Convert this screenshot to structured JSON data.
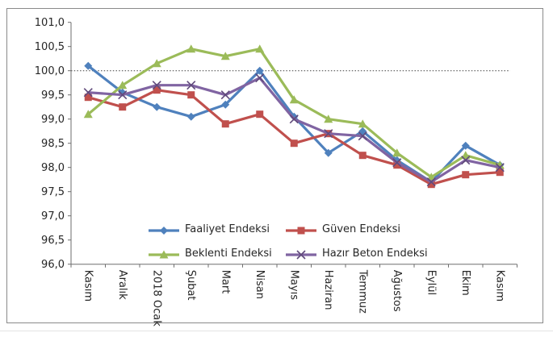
{
  "window": {
    "background": "#ffffff",
    "frame_border_color": "#8a8a8a"
  },
  "chart_data": {
    "type": "line",
    "title": "",
    "xlabel": "",
    "ylabel": "",
    "categories": [
      "Kasım",
      "Aralık",
      "2018 Ocak",
      "Şubat",
      "Mart",
      "Nisan",
      "Mayıs",
      "Haziran",
      "Temmuz",
      "Ağustos",
      "Eylül",
      "Ekim",
      "Kasım"
    ],
    "series": [
      {
        "name": "Faaliyet Endeksi",
        "color": "#4F81BD",
        "marker": "diamond",
        "values": [
          100.1,
          99.55,
          99.25,
          99.05,
          99.3,
          100.0,
          99.05,
          98.3,
          98.75,
          98.15,
          97.7,
          98.45,
          98.05
        ]
      },
      {
        "name": "Güven Endeksi",
        "color": "#C0504D",
        "marker": "square",
        "values": [
          99.45,
          99.25,
          99.6,
          99.5,
          98.9,
          99.1,
          98.5,
          98.7,
          98.25,
          98.05,
          97.65,
          97.85,
          97.9
        ]
      },
      {
        "name": "Beklenti Endeksi",
        "color": "#9BBB59",
        "marker": "triangle",
        "values": [
          99.1,
          99.7,
          100.15,
          100.45,
          100.3,
          100.45,
          99.4,
          99.0,
          98.9,
          98.3,
          97.8,
          98.25,
          98.05
        ]
      },
      {
        "name": "Hazır Beton Endeksi",
        "color": "#8064A2",
        "marker": "x",
        "marker_color": "#604A7B",
        "values": [
          99.55,
          99.5,
          99.7,
          99.7,
          99.5,
          99.85,
          99.0,
          98.7,
          98.65,
          98.1,
          97.7,
          98.15,
          98.0
        ]
      }
    ],
    "ylim": [
      96.0,
      101.0
    ],
    "ytick_step": 0.5,
    "ytick_labels": [
      "101,0",
      "100,5",
      "100,0",
      "99,5",
      "99,0",
      "98,5",
      "98,0",
      "97,5",
      "97,0",
      "96,5",
      "96,0"
    ],
    "decimal_separator": ",",
    "grid": "off",
    "reference_line": {
      "value": 100.0,
      "style": "dotted",
      "color": "#404040"
    },
    "legend_position": "bottom-inside",
    "axis_color": "#6e6e6e",
    "text_color": "#262626",
    "x_labels_rotated_degrees": 90
  }
}
